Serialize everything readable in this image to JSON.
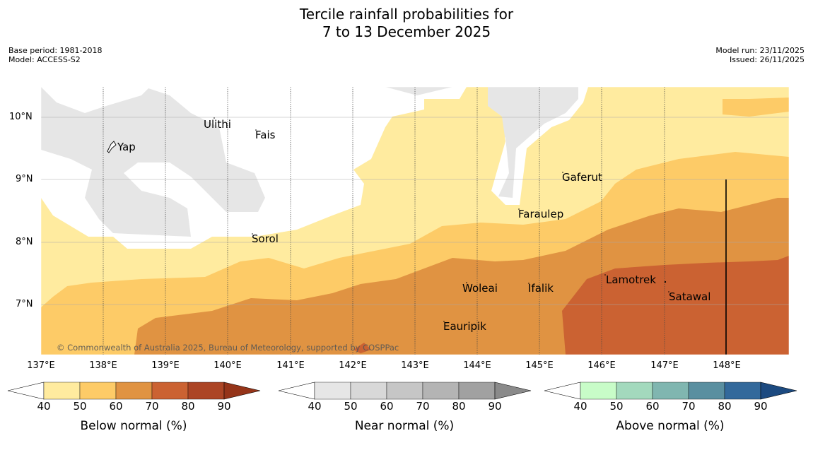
{
  "title_line1": "Tercile rainfall probabilities for",
  "title_line2": "7 to 13 December 2025",
  "meta_left": [
    "Base period: 1981-2018",
    "Model: ACCESS-S2"
  ],
  "meta_right": [
    "Model run: 23/11/2025",
    "Issued: 26/11/2025"
  ],
  "lat_labels": [
    "10°N",
    "9°N",
    "8°N",
    "7°N"
  ],
  "lon_labels": [
    "137°E",
    "138°E",
    "139°E",
    "140°E",
    "141°E",
    "142°E",
    "143°E",
    "144°E",
    "145°E",
    "146°E",
    "147°E",
    "148°E"
  ],
  "places": {
    "yap": "Yap",
    "ulithi": "Ulithi",
    "fais": "Fais",
    "gaferut": "Gaferut",
    "faraulep": "Faraulep",
    "sorol": "Sorol",
    "woleai": "Woleai",
    "ifalik": "Ifalik",
    "lamotrek": "Lamotrek",
    "satawal": "Satawal",
    "eauripik": "Eauripik"
  },
  "copyright": "© Commonwealth of Australia 2025, Bureau of Meteorology, supported by COSPPac",
  "legends": [
    {
      "title": "Below normal (%)",
      "ticks": [
        "40",
        "50",
        "60",
        "70",
        "80",
        "90"
      ],
      "colors": [
        "#ffeb9f",
        "#fdcb67",
        "#e09342",
        "#cb6232",
        "#ac4525",
        "#953419"
      ]
    },
    {
      "title": "Near normal (%)",
      "ticks": [
        "40",
        "50",
        "60",
        "70",
        "80",
        "90"
      ],
      "colors": [
        "#e6e6e6",
        "#d8d8d8",
        "#c6c6c6",
        "#b4b4b4",
        "#a1a1a1",
        "#8a8a8a"
      ]
    },
    {
      "title": "Above normal (%)",
      "ticks": [
        "40",
        "50",
        "60",
        "70",
        "80",
        "90"
      ],
      "colors": [
        "#c8fcc8",
        "#a3d9bd",
        "#80b6b0",
        "#5a8fa0",
        "#33699b",
        "#1c4a80"
      ]
    }
  ]
}
